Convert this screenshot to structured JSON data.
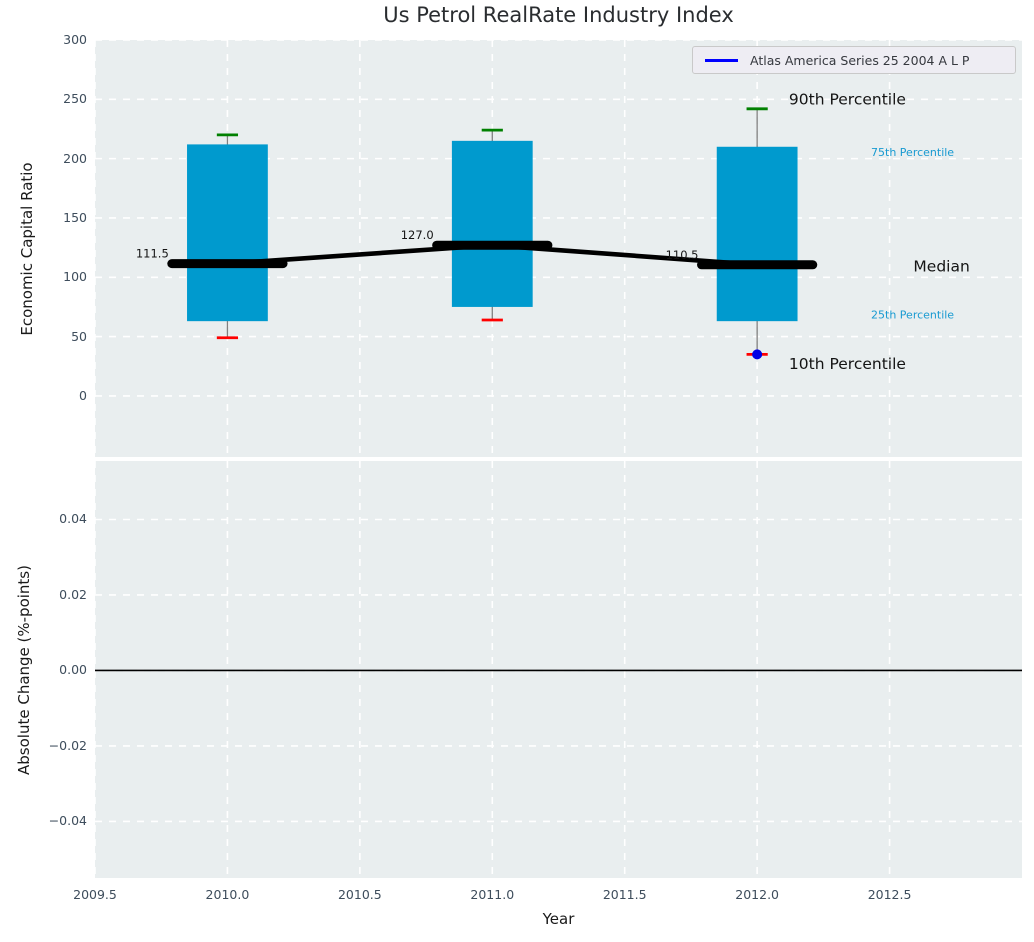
{
  "title": "Us Petrol RealRate Industry Index",
  "legend": {
    "label": "Atlas America Series 25 2004 A L P",
    "line_color": "#0000ff",
    "position": "upper right"
  },
  "colors": {
    "plot_bg": "#e9eeef",
    "grid": "#ffffff",
    "box_fill": "#009ace",
    "whisker": "#808080",
    "p90_cap": "#008000",
    "p10_cap": "#ff0000",
    "median_line": "#000000",
    "zero_line": "#000000",
    "dot": "#0000e6",
    "tick_label": "#3e4d5c",
    "text_black": "#141414",
    "accent_text": "#189ad1"
  },
  "chart_data": [
    {
      "type": "box",
      "title": "Us Petrol RealRate Industry Index",
      "ylabel": "Economic Capital Ratio",
      "grid": true,
      "legend_position": "upper right",
      "x": [
        2010,
        2011,
        2012
      ],
      "p90": [
        220,
        224,
        242
      ],
      "p75": [
        212,
        215,
        210
      ],
      "median": [
        111.5,
        127.0,
        110.5
      ],
      "p25": [
        63,
        75,
        63
      ],
      "p10": [
        49,
        64,
        35
      ],
      "median_labels": [
        "111.5",
        "127.0",
        "110.5"
      ],
      "series": [
        {
          "name": "Atlas America Series 25 2004 A L P",
          "color": "#0000e6",
          "points": [
            {
              "x": 2012,
              "y": 35
            }
          ]
        }
      ],
      "xlim": [
        2009.5,
        2013.0
      ],
      "ylim": [
        -51.5,
        300
      ],
      "yticks": [
        0,
        50,
        100,
        150,
        200,
        250,
        300
      ],
      "ytick_labels": [
        "0",
        "50",
        "100",
        "150",
        "200",
        "250",
        "300"
      ],
      "annotations": [
        {
          "text": "90th Percentile",
          "x": 2012.12,
          "y": 250,
          "color": "black",
          "size": "large"
        },
        {
          "text": "75th Percentile",
          "x": 2012.43,
          "y": 205,
          "color": "accent",
          "size": "small"
        },
        {
          "text": "Median",
          "x": 2012.59,
          "y": 109,
          "color": "black",
          "size": "large"
        },
        {
          "text": "25th Percentile",
          "x": 2012.43,
          "y": 68,
          "color": "accent",
          "size": "small"
        },
        {
          "text": "10th Percentile",
          "x": 2012.12,
          "y": 27,
          "color": "black",
          "size": "large"
        }
      ]
    },
    {
      "type": "line",
      "ylabel": "Absolute Change (%-points)",
      "xlabel": "Year",
      "grid": true,
      "xlim": [
        2009.5,
        2013.0
      ],
      "ylim": [
        -0.055,
        0.0555
      ],
      "yticks": [
        0.04,
        0.02,
        0.0,
        -0.02,
        -0.04
      ],
      "ytick_labels": [
        "0.04",
        "0.02",
        "0.00",
        "−0.02",
        "−0.04"
      ],
      "xticks": [
        2009.5,
        2010.0,
        2010.5,
        2011.0,
        2011.5,
        2012.0,
        2012.5
      ],
      "xtick_labels": [
        "2009.5",
        "2010.0",
        "2010.5",
        "2011.0",
        "2011.5",
        "2012.0",
        "2012.5"
      ],
      "zero_line": 0.0
    }
  ]
}
